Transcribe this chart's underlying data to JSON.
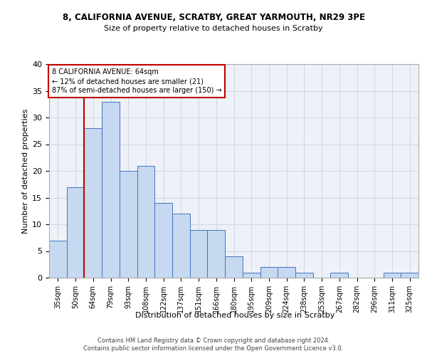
{
  "title1": "8, CALIFORNIA AVENUE, SCRATBY, GREAT YARMOUTH, NR29 3PE",
  "title2": "Size of property relative to detached houses in Scratby",
  "xlabel": "Distribution of detached houses by size in Scratby",
  "ylabel": "Number of detached properties",
  "bar_labels": [
    "35sqm",
    "50sqm",
    "64sqm",
    "79sqm",
    "93sqm",
    "108sqm",
    "122sqm",
    "137sqm",
    "151sqm",
    "166sqm",
    "180sqm",
    "195sqm",
    "209sqm",
    "224sqm",
    "238sqm",
    "253sqm",
    "267sqm",
    "282sqm",
    "296sqm",
    "311sqm",
    "325sqm"
  ],
  "bar_values": [
    7,
    17,
    28,
    33,
    20,
    21,
    14,
    12,
    9,
    9,
    4,
    1,
    2,
    2,
    1,
    0,
    1,
    0,
    0,
    1,
    1
  ],
  "bar_color": "#c6d9f0",
  "bar_edge_color": "#4472c4",
  "highlight_index": 2,
  "highlight_line_color": "#c00000",
  "annotation_line1": "8 CALIFORNIA AVENUE: 64sqm",
  "annotation_line2": "← 12% of detached houses are smaller (21)",
  "annotation_line3": "87% of semi-detached houses are larger (150) →",
  "annotation_box_color": "#c00000",
  "ylim": [
    0,
    40
  ],
  "yticks": [
    0,
    5,
    10,
    15,
    20,
    25,
    30,
    35,
    40
  ],
  "grid_color": "#d0d8e8",
  "background_color": "#eef2f8",
  "footer1": "Contains HM Land Registry data © Crown copyright and database right 2024.",
  "footer2": "Contains public sector information licensed under the Open Government Licence v3.0."
}
